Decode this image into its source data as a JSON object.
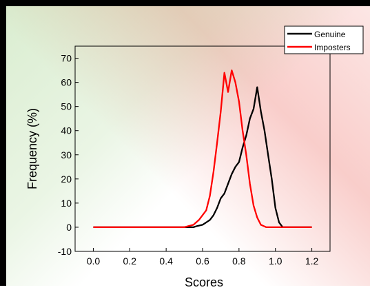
{
  "chart_data": {
    "type": "line",
    "xlabel": "Scores",
    "ylabel": "Frequency (%)",
    "xlim": [
      -0.1,
      1.3
    ],
    "ylim": [
      -10,
      75
    ],
    "xticks": [
      "0.0",
      "0.2",
      "0.4",
      "0.6",
      "0.8",
      "1.0",
      "1.2"
    ],
    "yticks": [
      "-10",
      "0",
      "10",
      "20",
      "30",
      "40",
      "50",
      "60",
      "70"
    ],
    "legend_position": "top-right",
    "series": [
      {
        "name": "Genuine",
        "color": "#000000",
        "x": [
          0.0,
          0.55,
          0.57,
          0.6,
          0.62,
          0.64,
          0.66,
          0.68,
          0.7,
          0.72,
          0.74,
          0.76,
          0.78,
          0.8,
          0.82,
          0.84,
          0.86,
          0.88,
          0.9,
          0.92,
          0.94,
          0.96,
          0.98,
          1.0,
          1.02,
          1.04,
          1.2
        ],
        "y": [
          0,
          0,
          0.5,
          1,
          2,
          3,
          5,
          8,
          12,
          14,
          18,
          22,
          25,
          27,
          33,
          38,
          45,
          49,
          58,
          48,
          40,
          30,
          20,
          8,
          2,
          0,
          0
        ]
      },
      {
        "name": "Imposters",
        "color": "#ff0000",
        "x": [
          0.0,
          0.5,
          0.55,
          0.58,
          0.6,
          0.62,
          0.64,
          0.66,
          0.68,
          0.7,
          0.72,
          0.74,
          0.76,
          0.78,
          0.8,
          0.82,
          0.84,
          0.86,
          0.88,
          0.9,
          0.92,
          0.95,
          1.2
        ],
        "y": [
          0,
          0,
          1,
          3,
          5,
          7,
          13,
          23,
          35,
          48,
          64,
          56,
          65,
          60,
          52,
          40,
          30,
          18,
          9,
          4,
          1,
          0,
          0
        ]
      }
    ]
  }
}
